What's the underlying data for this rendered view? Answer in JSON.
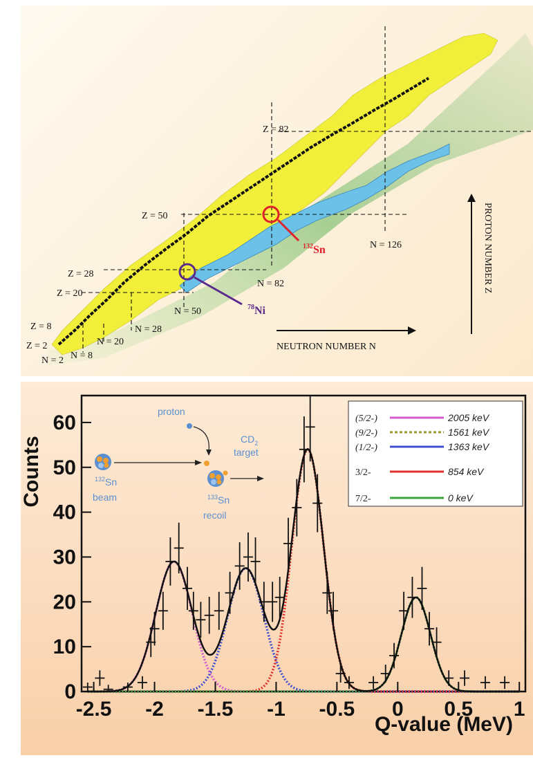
{
  "nuclide_chart": {
    "proton_axis_label": "PROTON NUMBER Z",
    "neutron_axis_label": "NEUTRON NUMBER N",
    "magic_labels": {
      "z2": "Z = 2",
      "z8": "Z = 8",
      "z20": "Z = 20",
      "z28": "Z = 28",
      "z50": "Z = 50",
      "z82": "Z = 82",
      "n2": "N = 2",
      "n8": "N = 8",
      "n20": "N = 20",
      "n28": "N = 28",
      "n50": "N = 50",
      "n82": "N = 82",
      "n126": "N = 126"
    },
    "isotopes": [
      {
        "mass": "132",
        "symbol": "Sn",
        "color": "#e0202a"
      },
      {
        "mass": "78",
        "symbol": "Ni",
        "color": "#5a2a8c"
      }
    ],
    "colors": {
      "stable": "#111111",
      "known": "#f2ef3a",
      "rprocess": "#6cc1e8",
      "dripline": "#3aa53a"
    }
  },
  "schematic": {
    "proton_label": "proton",
    "target_label": "CD",
    "target_sub": "2",
    "target_word": "target",
    "beam_mass": "132",
    "beam_symbol": "Sn",
    "beam_word": "beam",
    "recoil_mass": "133",
    "recoil_symbol": "Sn",
    "recoil_word": "recoil",
    "text_color": "#5b8fd0"
  },
  "chart_data": {
    "type": "line",
    "xlabel": "Q-value (MeV)",
    "ylabel": "Counts",
    "xlim": [
      -2.6,
      1.05
    ],
    "ylim": [
      0,
      66
    ],
    "xticks": [
      -2.5,
      -2,
      -1.5,
      -1,
      -0.5,
      0,
      0.5,
      1
    ],
    "xtick_labels": [
      "-2.5",
      "-2",
      "-1.5",
      "-1",
      "-0.5",
      "0",
      "0.5",
      "1"
    ],
    "yticks": [
      0,
      10,
      20,
      30,
      40,
      50,
      60
    ],
    "ytick_labels": [
      "0",
      "10",
      "20",
      "30",
      "40",
      "50",
      "60"
    ],
    "legend_position": "top-right",
    "series": [
      {
        "name": "(5/2-)",
        "energy": "2005 keV",
        "color": "#d45bd0",
        "style": "solid",
        "center": -1.84,
        "amplitude": 29,
        "sigma": 0.15
      },
      {
        "name": "(9/2-)",
        "energy": "1561 keV",
        "color": "#9a9a2a",
        "style": "dashed",
        "center": -1.4,
        "amplitude": 0,
        "sigma": 0.15
      },
      {
        "name": "(1/2-)",
        "energy": "1363 keV",
        "color": "#3f4fd0",
        "style": "solid",
        "center": -1.25,
        "amplitude": 27.5,
        "sigma": 0.15
      },
      {
        "name": "3/2-",
        "energy": "854 keV",
        "color": "#e0302a",
        "style": "solid",
        "center": -0.74,
        "amplitude": 54,
        "sigma": 0.13
      },
      {
        "name": "7/2-",
        "energy": "0 keV",
        "color": "#3aa63a",
        "style": "solid",
        "center": 0.15,
        "amplitude": 21,
        "sigma": 0.12
      }
    ],
    "data_points": [
      {
        "x": -2.55,
        "y": 1
      },
      {
        "x": -2.45,
        "y": 3
      },
      {
        "x": -2.38,
        "y": 0.5
      },
      {
        "x": -2.22,
        "y": 1
      },
      {
        "x": -2.1,
        "y": 2
      },
      {
        "x": -2.03,
        "y": 11
      },
      {
        "x": -2.0,
        "y": 14
      },
      {
        "x": -1.93,
        "y": 18
      },
      {
        "x": -1.87,
        "y": 29
      },
      {
        "x": -1.8,
        "y": 32
      },
      {
        "x": -1.73,
        "y": 23
      },
      {
        "x": -1.68,
        "y": 18
      },
      {
        "x": -1.62,
        "y": 16
      },
      {
        "x": -1.55,
        "y": 17
      },
      {
        "x": -1.47,
        "y": 18
      },
      {
        "x": -1.38,
        "y": 22
      },
      {
        "x": -1.3,
        "y": 28
      },
      {
        "x": -1.23,
        "y": 30
      },
      {
        "x": -1.17,
        "y": 29
      },
      {
        "x": -1.1,
        "y": 20
      },
      {
        "x": -1.03,
        "y": 20
      },
      {
        "x": -0.97,
        "y": 21
      },
      {
        "x": -0.9,
        "y": 33
      },
      {
        "x": -0.83,
        "y": 41
      },
      {
        "x": -0.77,
        "y": 54
      },
      {
        "x": -0.72,
        "y": 59
      },
      {
        "x": -0.66,
        "y": 42
      },
      {
        "x": -0.58,
        "y": 22
      },
      {
        "x": -0.53,
        "y": 18
      },
      {
        "x": -0.47,
        "y": 4
      },
      {
        "x": -0.4,
        "y": 2
      },
      {
        "x": -0.2,
        "y": 2
      },
      {
        "x": -0.1,
        "y": 4
      },
      {
        "x": -0.03,
        "y": 8
      },
      {
        "x": 0.05,
        "y": 18
      },
      {
        "x": 0.12,
        "y": 21
      },
      {
        "x": 0.2,
        "y": 23
      },
      {
        "x": 0.26,
        "y": 14
      },
      {
        "x": 0.32,
        "y": 11
      },
      {
        "x": 0.42,
        "y": 3
      },
      {
        "x": 0.55,
        "y": 3
      },
      {
        "x": 0.72,
        "y": 2
      },
      {
        "x": 0.88,
        "y": 2
      }
    ]
  }
}
